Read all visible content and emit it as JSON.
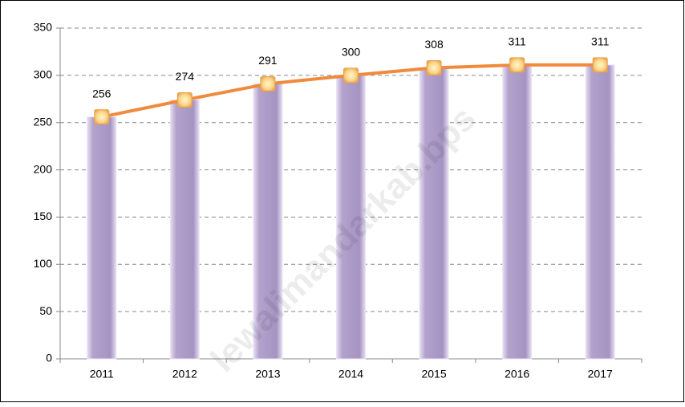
{
  "chart_data": {
    "type": "bar",
    "categories": [
      "2011",
      "2012",
      "2013",
      "2014",
      "2015",
      "2016",
      "2017"
    ],
    "series": [
      {
        "type": "bar",
        "color": "#b3a2cc",
        "values": [
          256,
          274,
          291,
          300,
          308,
          311,
          311
        ]
      },
      {
        "type": "line",
        "color": "#f08a3c",
        "values": [
          256,
          274,
          291,
          300,
          308,
          311,
          311
        ],
        "data_labels": true
      }
    ],
    "ylim": [
      0,
      350
    ],
    "yticks": [
      0,
      50,
      100,
      150,
      200,
      250,
      300,
      350
    ],
    "grid": true,
    "watermark": "lewalimandarkab.bps"
  }
}
